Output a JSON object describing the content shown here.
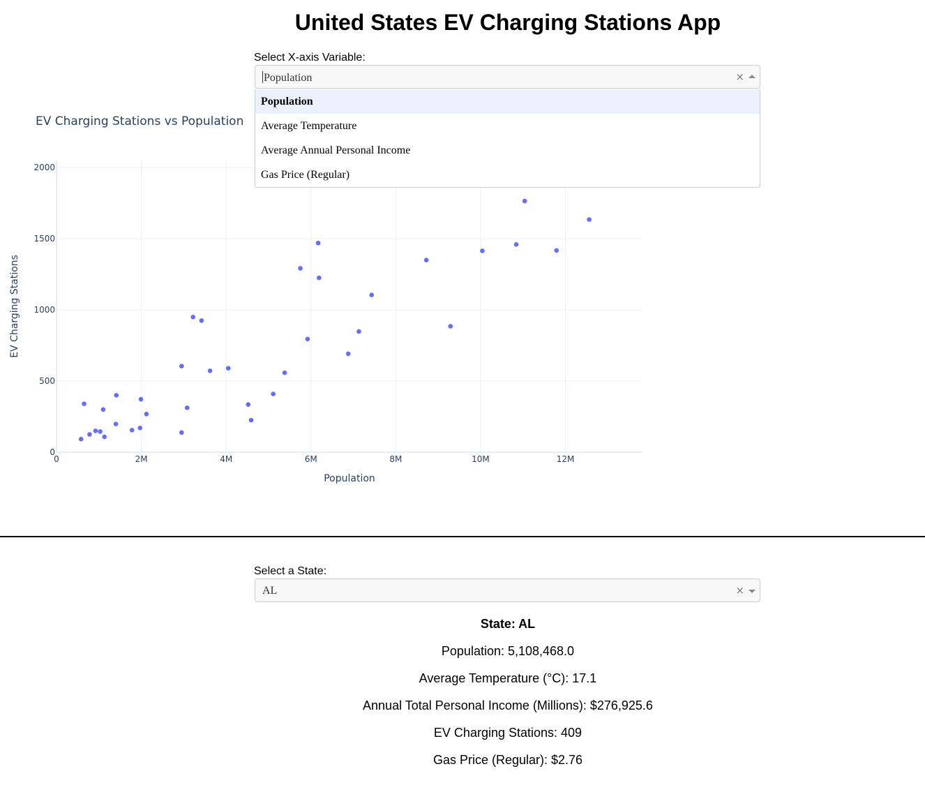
{
  "title": "United States EV Charging Stations App",
  "xaxis_selector": {
    "label": "Select X-axis Variable:",
    "value": "Population",
    "options": [
      "Population",
      "Average Temperature",
      "Average Annual Personal Income",
      "Gas Price (Regular)"
    ]
  },
  "chart_data": {
    "type": "scatter",
    "title": "EV Charging Stations vs Population",
    "xlabel": "Population",
    "ylabel": "EV Charging Stations",
    "xlim": [
      0,
      13800000
    ],
    "ylim": [
      0,
      2050
    ],
    "xticks": [
      0,
      2000000,
      4000000,
      6000000,
      8000000,
      10000000,
      12000000
    ],
    "xtick_labels": [
      "0",
      "2M",
      "4M",
      "6M",
      "8M",
      "10M",
      "12M"
    ],
    "yticks": [
      0,
      500,
      1000,
      1500,
      2000
    ],
    "ytick_labels": [
      "0",
      "500",
      "1000",
      "1500",
      "2000"
    ],
    "grid": true,
    "marker_color": "#636efa",
    "points": [
      {
        "x": 580000,
        "y": 92
      },
      {
        "x": 650000,
        "y": 340
      },
      {
        "x": 780000,
        "y": 125
      },
      {
        "x": 920000,
        "y": 150
      },
      {
        "x": 1030000,
        "y": 145
      },
      {
        "x": 1100000,
        "y": 300
      },
      {
        "x": 1130000,
        "y": 108
      },
      {
        "x": 1400000,
        "y": 198
      },
      {
        "x": 1410000,
        "y": 400
      },
      {
        "x": 1780000,
        "y": 155
      },
      {
        "x": 1970000,
        "y": 170
      },
      {
        "x": 1990000,
        "y": 372
      },
      {
        "x": 2120000,
        "y": 268
      },
      {
        "x": 2950000,
        "y": 605
      },
      {
        "x": 2950000,
        "y": 138
      },
      {
        "x": 3080000,
        "y": 312
      },
      {
        "x": 3220000,
        "y": 950
      },
      {
        "x": 3420000,
        "y": 925
      },
      {
        "x": 3620000,
        "y": 572
      },
      {
        "x": 4050000,
        "y": 590
      },
      {
        "x": 4520000,
        "y": 335
      },
      {
        "x": 4590000,
        "y": 225
      },
      {
        "x": 5110000,
        "y": 409
      },
      {
        "x": 5380000,
        "y": 558
      },
      {
        "x": 5750000,
        "y": 1292
      },
      {
        "x": 5920000,
        "y": 795
      },
      {
        "x": 6170000,
        "y": 1470
      },
      {
        "x": 6190000,
        "y": 1225
      },
      {
        "x": 6880000,
        "y": 692
      },
      {
        "x": 7130000,
        "y": 848
      },
      {
        "x": 7430000,
        "y": 1105
      },
      {
        "x": 8720000,
        "y": 1350
      },
      {
        "x": 9290000,
        "y": 885
      },
      {
        "x": 10040000,
        "y": 1415
      },
      {
        "x": 10840000,
        "y": 1460
      },
      {
        "x": 11040000,
        "y": 1765
      },
      {
        "x": 11790000,
        "y": 1418
      },
      {
        "x": 12560000,
        "y": 1635
      }
    ]
  },
  "state_selector": {
    "label": "Select a State:",
    "value": "AL"
  },
  "state_info": {
    "state": "State: AL",
    "population": "Population: 5,108,468.0",
    "temperature": "Average Temperature (°C): 17.1",
    "income": "Annual Total Personal Income (Millions): $276,925.6",
    "stations": "EV Charging Stations: 409",
    "gas_price": "Gas Price (Regular): $2.76"
  },
  "icons": {
    "clear": "×"
  }
}
